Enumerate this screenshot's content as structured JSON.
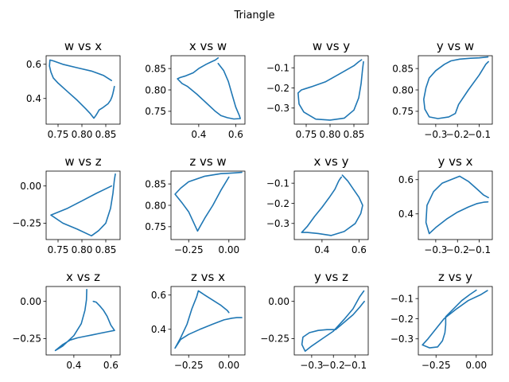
{
  "suptitle": "Triangle",
  "chart_data": [
    {
      "type": "line",
      "title": "w vs x",
      "xlim": [
        0.725,
        0.88
      ],
      "ylim": [
        0.25,
        0.65
      ],
      "xticks": [
        0.75,
        0.8,
        0.85
      ],
      "xtick_labels": [
        "0.75",
        "0.80",
        "0.85"
      ],
      "yticks": [
        0.4,
        0.6
      ],
      "ytick_labels": [
        "0.4",
        "0.6"
      ],
      "x": [
        0.868,
        0.867,
        0.865,
        0.863,
        0.86,
        0.855,
        0.848,
        0.843,
        0.836,
        0.833,
        0.829,
        0.825,
        0.818,
        0.808,
        0.79,
        0.77,
        0.75,
        0.74,
        0.735,
        0.732,
        0.733,
        0.74,
        0.76,
        0.79,
        0.82,
        0.845,
        0.862
      ],
      "y": [
        0.47,
        0.455,
        0.43,
        0.41,
        0.39,
        0.37,
        0.355,
        0.345,
        0.333,
        0.318,
        0.3,
        0.285,
        0.31,
        0.34,
        0.39,
        0.44,
        0.49,
        0.52,
        0.555,
        0.59,
        0.625,
        0.62,
        0.6,
        0.58,
        0.56,
        0.535,
        0.505
      ]
    },
    {
      "type": "line",
      "title": "x vs w",
      "xlim": [
        0.25,
        0.65
      ],
      "ylim": [
        0.72,
        0.88
      ],
      "xticks": [
        0.4,
        0.6
      ],
      "xtick_labels": [
        "0.4",
        "0.6"
      ],
      "yticks": [
        0.75,
        0.8,
        0.85
      ],
      "ytick_labels": [
        "0.75",
        "0.80",
        "0.85"
      ],
      "x": [
        0.505,
        0.49,
        0.47,
        0.44,
        0.4,
        0.37,
        0.33,
        0.3,
        0.285,
        0.31,
        0.34,
        0.39,
        0.44,
        0.49,
        0.52,
        0.555,
        0.59,
        0.625,
        0.62,
        0.6,
        0.58,
        0.56,
        0.535,
        0.505
      ],
      "y": [
        0.875,
        0.87,
        0.866,
        0.86,
        0.85,
        0.84,
        0.833,
        0.829,
        0.826,
        0.815,
        0.808,
        0.79,
        0.77,
        0.75,
        0.74,
        0.735,
        0.732,
        0.733,
        0.74,
        0.76,
        0.79,
        0.82,
        0.845,
        0.862
      ]
    },
    {
      "type": "line",
      "title": "w vs y",
      "xlim": [
        0.725,
        0.88
      ],
      "ylim": [
        -0.38,
        -0.04
      ],
      "xticks": [
        0.75,
        0.8,
        0.85
      ],
      "xtick_labels": [
        "0.75",
        "0.80",
        "0.85"
      ],
      "yticks": [
        -0.1,
        -0.2,
        -0.3
      ],
      "ytick_labels": [
        "−0.1",
        "−0.2",
        "−0.3"
      ],
      "x": [
        0.866,
        0.86,
        0.85,
        0.82,
        0.79,
        0.76,
        0.74,
        0.733,
        0.735,
        0.745,
        0.77,
        0.8,
        0.83,
        0.85,
        0.86,
        0.865,
        0.868,
        0.87
      ],
      "y": [
        -0.06,
        -0.07,
        -0.09,
        -0.13,
        -0.17,
        -0.195,
        -0.21,
        -0.225,
        -0.28,
        -0.32,
        -0.355,
        -0.36,
        -0.35,
        -0.31,
        -0.25,
        -0.18,
        -0.11,
        -0.07
      ]
    },
    {
      "type": "line",
      "title": "y vs w",
      "xlim": [
        -0.38,
        -0.04
      ],
      "ylim": [
        0.72,
        0.88
      ],
      "xticks": [
        -0.3,
        -0.2,
        -0.1
      ],
      "xtick_labels": [
        "−0.3",
        "−0.2",
        "−0.1"
      ],
      "yticks": [
        0.75,
        0.8,
        0.85
      ],
      "ytick_labels": [
        "0.75",
        "0.80",
        "0.85"
      ],
      "x": [
        -0.06,
        -0.1,
        -0.14,
        -0.19,
        -0.23,
        -0.26,
        -0.3,
        -0.33,
        -0.345,
        -0.355,
        -0.35,
        -0.33,
        -0.29,
        -0.24,
        -0.21,
        -0.195,
        -0.15,
        -0.1,
        -0.07,
        -0.058
      ],
      "y": [
        0.877,
        0.875,
        0.874,
        0.872,
        0.868,
        0.86,
        0.845,
        0.828,
        0.805,
        0.778,
        0.755,
        0.737,
        0.733,
        0.737,
        0.745,
        0.766,
        0.8,
        0.835,
        0.86,
        0.866
      ]
    },
    {
      "type": "line",
      "title": "w vs z",
      "xlim": [
        0.725,
        0.88
      ],
      "ylim": [
        -0.36,
        0.1
      ],
      "xticks": [
        0.75,
        0.8,
        0.85
      ],
      "xtick_labels": [
        "0.75",
        "0.80",
        "0.85"
      ],
      "yticks": [
        0.0,
        -0.25
      ],
      "ytick_labels": [
        "0.00",
        "−0.25"
      ],
      "x": [
        0.87,
        0.868,
        0.865,
        0.86,
        0.85,
        0.835,
        0.82,
        0.79,
        0.76,
        0.735,
        0.77,
        0.8,
        0.83,
        0.862
      ],
      "y": [
        0.08,
        0.04,
        -0.05,
        -0.15,
        -0.25,
        -0.3,
        -0.335,
        -0.29,
        -0.25,
        -0.195,
        -0.15,
        -0.1,
        -0.05,
        0.0
      ]
    },
    {
      "type": "line",
      "title": "z vs w",
      "xlim": [
        -0.36,
        0.1
      ],
      "ylim": [
        0.72,
        0.88
      ],
      "xticks": [
        -0.25,
        0.0
      ],
      "xtick_labels": [
        "−0.25",
        "0.00"
      ],
      "yticks": [
        0.75,
        0.8,
        0.85
      ],
      "ytick_labels": [
        "0.75",
        "0.80",
        "0.85"
      ],
      "x": [
        0.08,
        0.04,
        0.0,
        -0.05,
        -0.15,
        -0.25,
        -0.3,
        -0.335,
        -0.29,
        -0.25,
        -0.195,
        -0.15,
        -0.1,
        -0.05,
        0.0
      ],
      "y": [
        0.877,
        0.876,
        0.875,
        0.874,
        0.868,
        0.855,
        0.84,
        0.826,
        0.805,
        0.785,
        0.74,
        0.77,
        0.8,
        0.835,
        0.866
      ]
    },
    {
      "type": "line",
      "title": "x vs y",
      "xlim": [
        0.25,
        0.65
      ],
      "ylim": [
        -0.38,
        -0.04
      ],
      "xticks": [
        0.4,
        0.6
      ],
      "xtick_labels": [
        "0.4",
        "0.6"
      ],
      "yticks": [
        -0.1,
        -0.2,
        -0.3
      ],
      "ytick_labels": [
        "−0.1",
        "−0.2",
        "−0.3"
      ],
      "x": [
        0.505,
        0.5,
        0.49,
        0.47,
        0.44,
        0.4,
        0.36,
        0.32,
        0.29,
        0.32,
        0.38,
        0.45,
        0.52,
        0.58,
        0.61,
        0.62,
        0.6,
        0.57,
        0.54,
        0.51
      ],
      "y": [
        -0.07,
        -0.075,
        -0.09,
        -0.13,
        -0.17,
        -0.22,
        -0.265,
        -0.315,
        -0.345,
        -0.345,
        -0.35,
        -0.36,
        -0.34,
        -0.3,
        -0.25,
        -0.21,
        -0.17,
        -0.13,
        -0.09,
        -0.06
      ]
    },
    {
      "type": "line",
      "title": "y vs x",
      "xlim": [
        -0.38,
        -0.04
      ],
      "ylim": [
        0.25,
        0.65
      ],
      "xticks": [
        -0.3,
        -0.2,
        -0.1
      ],
      "xtick_labels": [
        "−0.3",
        "−0.2",
        "−0.1"
      ],
      "yticks": [
        0.4,
        0.6
      ],
      "ytick_labels": [
        "0.4",
        "0.6"
      ],
      "x": [
        -0.058,
        -0.08,
        -0.11,
        -0.15,
        -0.19,
        -0.23,
        -0.27,
        -0.31,
        -0.34,
        -0.345,
        -0.33,
        -0.3,
        -0.25,
        -0.2,
        -0.15,
        -0.11,
        -0.08,
        -0.06
      ],
      "y": [
        0.495,
        0.51,
        0.545,
        0.59,
        0.62,
        0.6,
        0.58,
        0.53,
        0.45,
        0.35,
        0.285,
        0.32,
        0.37,
        0.41,
        0.44,
        0.46,
        0.468,
        0.47
      ]
    },
    {
      "type": "line",
      "title": "x vs z",
      "xlim": [
        0.25,
        0.65
      ],
      "ylim": [
        -0.36,
        0.1
      ],
      "xticks": [
        0.4,
        0.6
      ],
      "xtick_labels": [
        "0.4",
        "0.6"
      ],
      "yticks": [
        0.0,
        -0.25
      ],
      "ytick_labels": [
        "0.00",
        "−0.25"
      ],
      "x": [
        0.505,
        0.52,
        0.54,
        0.56,
        0.58,
        0.6,
        0.62,
        0.58,
        0.54,
        0.5,
        0.46,
        0.42,
        0.38,
        0.34,
        0.3,
        0.34,
        0.4,
        0.44,
        0.46,
        0.468,
        0.47
      ],
      "y": [
        0.0,
        -0.005,
        -0.03,
        -0.06,
        -0.1,
        -0.16,
        -0.195,
        -0.205,
        -0.215,
        -0.225,
        -0.235,
        -0.245,
        -0.26,
        -0.29,
        -0.33,
        -0.3,
        -0.23,
        -0.15,
        -0.06,
        0.01,
        0.08
      ]
    },
    {
      "type": "line",
      "title": "z vs x",
      "xlim": [
        -0.36,
        0.1
      ],
      "ylim": [
        0.25,
        0.65
      ],
      "xticks": [
        -0.25,
        0.0
      ],
      "xtick_labels": [
        "−0.25",
        "0.00"
      ],
      "yticks": [
        0.4,
        0.6
      ],
      "ytick_labels": [
        "0.4",
        "0.6"
      ],
      "x": [
        0.08,
        0.05,
        0.02,
        -0.03,
        -0.1,
        -0.18,
        -0.25,
        -0.3,
        -0.335,
        -0.3,
        -0.26,
        -0.23,
        -0.2,
        -0.19,
        -0.15,
        -0.1,
        -0.05,
        -0.01,
        0.0
      ],
      "y": [
        0.468,
        0.468,
        0.465,
        0.455,
        0.43,
        0.4,
        0.37,
        0.34,
        0.29,
        0.35,
        0.43,
        0.52,
        0.59,
        0.625,
        0.6,
        0.57,
        0.54,
        0.51,
        0.498
      ]
    },
    {
      "type": "line",
      "title": "y vs z",
      "xlim": [
        -0.38,
        -0.04
      ],
      "ylim": [
        -0.36,
        0.1
      ],
      "xticks": [
        -0.3,
        -0.2,
        -0.1
      ],
      "xtick_labels": [
        "−0.3",
        "−0.2",
        "−0.1"
      ],
      "yticks": [
        0.0,
        -0.25
      ],
      "ytick_labels": [
        "0.00",
        "−0.25"
      ],
      "x": [
        -0.058,
        -0.08,
        -0.11,
        -0.15,
        -0.19,
        -0.23,
        -0.27,
        -0.31,
        -0.34,
        -0.345,
        -0.33,
        -0.3,
        -0.25,
        -0.2,
        -0.15,
        -0.11,
        -0.08,
        -0.06
      ],
      "y": [
        0.0,
        -0.04,
        -0.09,
        -0.14,
        -0.19,
        -0.19,
        -0.195,
        -0.21,
        -0.24,
        -0.29,
        -0.335,
        -0.3,
        -0.25,
        -0.2,
        -0.12,
        -0.05,
        0.03,
        0.07
      ]
    },
    {
      "type": "line",
      "title": "z vs y",
      "xlim": [
        -0.36,
        0.1
      ],
      "ylim": [
        -0.38,
        -0.04
      ],
      "xticks": [
        -0.25,
        0.0
      ],
      "xtick_labels": [
        "−0.25",
        "0.00"
      ],
      "yticks": [
        -0.1,
        -0.2,
        -0.3
      ],
      "ytick_labels": [
        "−0.1",
        "−0.2",
        "−0.3"
      ],
      "x": [
        0.0,
        -0.04,
        -0.09,
        -0.14,
        -0.19,
        -0.19,
        -0.195,
        -0.21,
        -0.24,
        -0.29,
        -0.335,
        -0.3,
        -0.25,
        -0.2,
        -0.12,
        -0.05,
        0.03,
        0.07
      ],
      "y": [
        -0.058,
        -0.08,
        -0.11,
        -0.15,
        -0.19,
        -0.23,
        -0.27,
        -0.31,
        -0.34,
        -0.345,
        -0.33,
        -0.3,
        -0.25,
        -0.2,
        -0.15,
        -0.11,
        -0.08,
        -0.06
      ]
    }
  ]
}
